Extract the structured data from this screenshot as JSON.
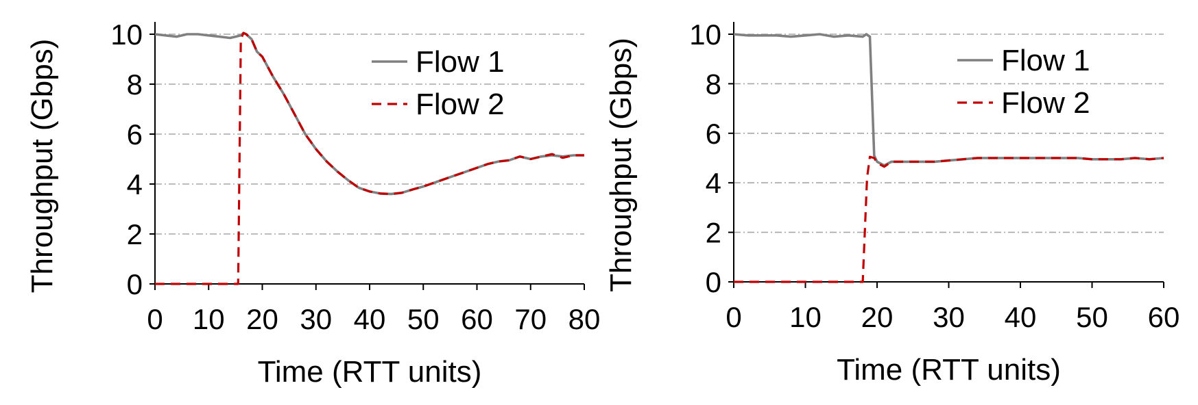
{
  "chart_data": [
    {
      "type": "line",
      "xlabel": "Time (RTT units)",
      "ylabel": "Throughput (Gbps)",
      "xlim": [
        0,
        80
      ],
      "ylim": [
        0,
        10
      ],
      "xticks": [
        0,
        10,
        20,
        30,
        40,
        50,
        60,
        70,
        80
      ],
      "yticks": [
        0,
        2,
        4,
        6,
        8,
        10
      ],
      "grid": "horizontal dash-dot",
      "legend_position": "top-right",
      "series": [
        {
          "name": "Flow 1",
          "color": "#808080",
          "style": "solid",
          "x": [
            0,
            2,
            4,
            6,
            8,
            10,
            12,
            14,
            15,
            16,
            16.5,
            17,
            18,
            19,
            20,
            22,
            24,
            26,
            28,
            30,
            32,
            34,
            36,
            38,
            40,
            42,
            44,
            46,
            48,
            50,
            52,
            54,
            56,
            58,
            60,
            62,
            64,
            66,
            68,
            70,
            72,
            74,
            76,
            78,
            80
          ],
          "y": [
            10,
            9.95,
            9.9,
            10,
            10,
            9.95,
            9.9,
            9.85,
            9.9,
            9.95,
            10.05,
            10,
            9.8,
            9.3,
            9.1,
            8.3,
            7.6,
            6.8,
            6.0,
            5.4,
            4.9,
            4.5,
            4.15,
            3.85,
            3.7,
            3.62,
            3.6,
            3.65,
            3.78,
            3.9,
            4.05,
            4.2,
            4.35,
            4.5,
            4.65,
            4.8,
            4.9,
            4.95,
            5.1,
            5.0,
            5.1,
            5.15,
            5.1,
            5.15,
            5.15
          ]
        },
        {
          "name": "Flow 2",
          "color": "#c00000",
          "style": "dashed",
          "x": [
            0,
            5,
            10,
            14.5,
            15.5,
            16,
            16.5,
            17,
            18,
            19,
            20,
            22,
            24,
            26,
            28,
            30,
            32,
            34,
            36,
            38,
            40,
            42,
            44,
            46,
            48,
            50,
            52,
            54,
            56,
            58,
            60,
            62,
            64,
            66,
            68,
            70,
            72,
            74,
            76,
            78,
            80
          ],
          "y": [
            0,
            0,
            0,
            0,
            0,
            9.8,
            10.05,
            10,
            9.8,
            9.3,
            9.1,
            8.3,
            7.6,
            6.8,
            6.0,
            5.4,
            4.9,
            4.5,
            4.15,
            3.85,
            3.7,
            3.62,
            3.6,
            3.65,
            3.78,
            3.9,
            4.05,
            4.2,
            4.35,
            4.5,
            4.65,
            4.8,
            4.9,
            4.95,
            5.1,
            5.0,
            5.1,
            5.2,
            5.05,
            5.15,
            5.15
          ]
        }
      ]
    },
    {
      "type": "line",
      "xlabel": "Time (RTT units)",
      "ylabel": "Throughput (Gbps)",
      "xlim": [
        0,
        60
      ],
      "ylim": [
        0,
        10
      ],
      "xticks": [
        0,
        10,
        20,
        30,
        40,
        50,
        60
      ],
      "yticks": [
        0,
        2,
        4,
        6,
        8,
        10
      ],
      "grid": "horizontal dash-dot",
      "legend_position": "top-right",
      "series": [
        {
          "name": "Flow 1",
          "color": "#808080",
          "style": "solid",
          "x": [
            0,
            2,
            4,
            6,
            8,
            10,
            12,
            14,
            16,
            18,
            18.5,
            19.0,
            19.6,
            20,
            21,
            22,
            24,
            26,
            28,
            30,
            32,
            34,
            36,
            38,
            40,
            42,
            44,
            46,
            48,
            50,
            52,
            54,
            56,
            58,
            60
          ],
          "y": [
            10,
            9.95,
            9.95,
            9.95,
            9.9,
            9.95,
            10,
            9.9,
            9.95,
            9.9,
            10,
            9.9,
            5.1,
            4.85,
            4.7,
            4.85,
            4.85,
            4.85,
            4.85,
            4.9,
            4.95,
            5.0,
            5.0,
            5.0,
            5.0,
            5.0,
            5.0,
            5.0,
            5.0,
            4.95,
            4.95,
            4.95,
            5.0,
            4.95,
            5.0
          ]
        },
        {
          "name": "Flow 2",
          "color": "#c00000",
          "style": "dashed",
          "x": [
            0,
            5,
            10,
            15,
            18,
            18.6,
            19.0,
            19.6,
            20,
            21,
            22,
            24,
            26,
            28,
            30,
            32,
            34,
            36,
            38,
            40,
            42,
            44,
            46,
            48,
            50,
            52,
            54,
            56,
            58,
            60
          ],
          "y": [
            0,
            0,
            0,
            0,
            0,
            4.2,
            5.05,
            5.0,
            4.8,
            4.65,
            4.85,
            4.85,
            4.85,
            4.85,
            4.9,
            4.95,
            5.0,
            5.0,
            5.0,
            5.0,
            5.0,
            5.0,
            5.0,
            5.0,
            4.95,
            4.95,
            4.95,
            5.0,
            4.95,
            5.0
          ]
        }
      ]
    }
  ]
}
